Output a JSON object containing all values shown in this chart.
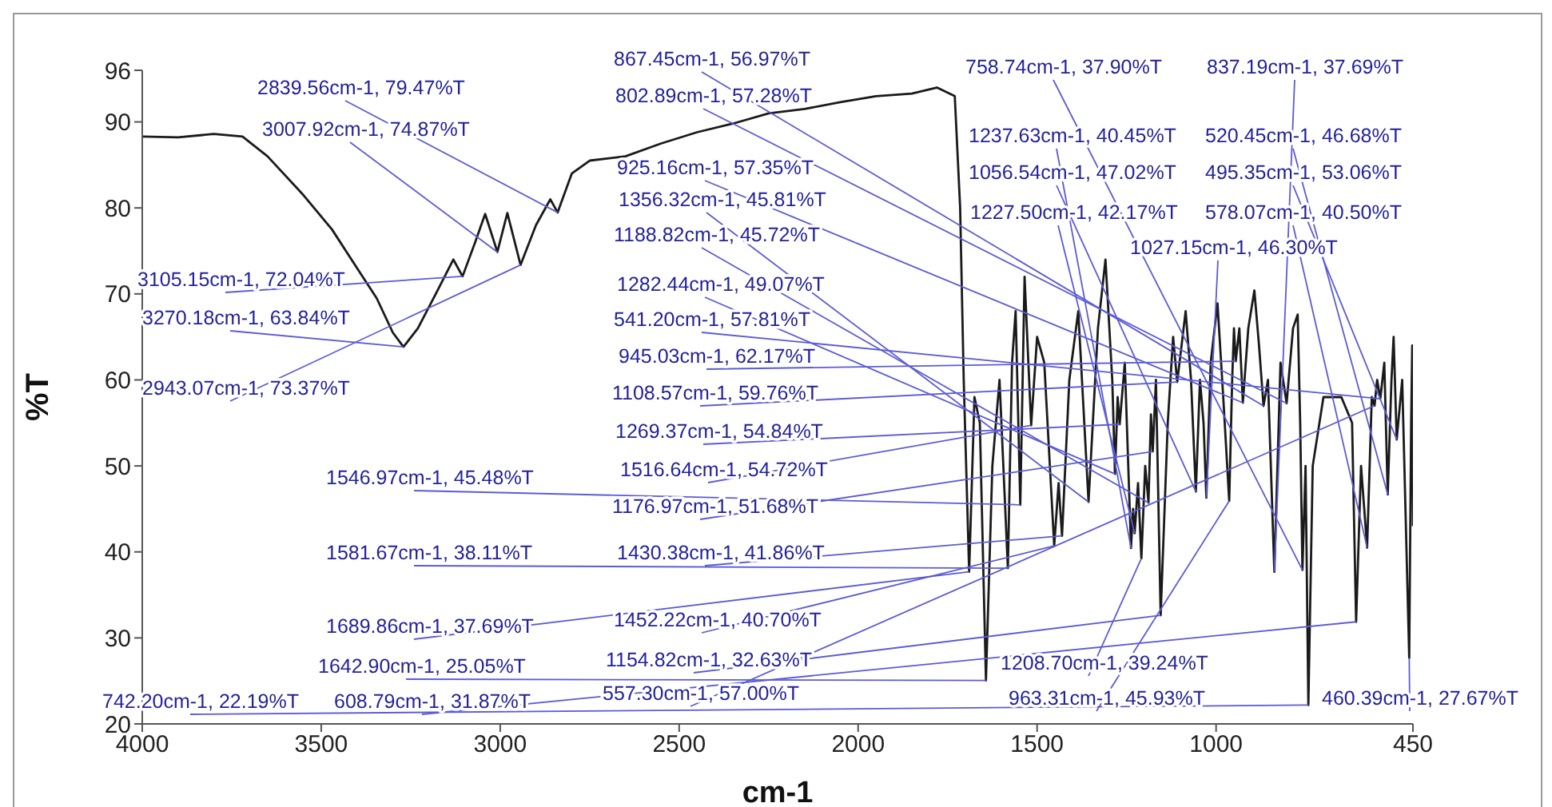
{
  "chart_data": {
    "type": "line",
    "xlabel": "cm-1",
    "ylabel": "%T",
    "xlim": [
      4000,
      450
    ],
    "ylim": [
      20,
      96
    ],
    "xticks": [
      4000,
      3500,
      3000,
      2500,
      2000,
      1500,
      1000,
      450
    ],
    "yticks": [
      20,
      30,
      40,
      50,
      60,
      70,
      80,
      90,
      96
    ],
    "marker": "none",
    "line_style": "solid",
    "x": [
      4000,
      3900,
      3800,
      3720,
      3650,
      3550,
      3470,
      3400,
      3345,
      3300,
      3270.18,
      3230,
      3180,
      3131,
      3105.15,
      3070,
      3042,
      3007.92,
      2980,
      2943.07,
      2900,
      2860,
      2839.56,
      2800,
      2750,
      2650,
      2550,
      2450,
      2350,
      2250,
      2150,
      2050,
      1950,
      1850,
      1780,
      1730,
      1715,
      1705,
      1689.86,
      1675,
      1660,
      1642.9,
      1625,
      1605,
      1581.67,
      1570,
      1560,
      1546.97,
      1535,
      1516.64,
      1500,
      1480,
      1452.22,
      1440,
      1430.38,
      1410,
      1385,
      1356.32,
      1330,
      1309,
      1290,
      1282.44,
      1275,
      1269.37,
      1255,
      1237.63,
      1232,
      1227.5,
      1218,
      1208.7,
      1198,
      1188.82,
      1182,
      1176.97,
      1168,
      1154.82,
      1135,
      1120,
      1108.57,
      1085,
      1070,
      1056.54,
      1045,
      1035,
      1027.15,
      1015,
      996,
      980,
      963.31,
      955,
      950,
      945.03,
      935,
      925.16,
      910,
      893,
      880,
      867.45,
      855,
      837.19,
      820,
      802.89,
      785,
      772,
      765,
      758.74,
      750,
      742.2,
      730,
      700,
      650,
      620,
      608.79,
      595,
      578.07,
      565,
      557.3,
      550,
      541.2,
      530,
      520.45,
      510,
      504,
      495.35,
      480,
      460.39,
      455,
      452,
      450
    ],
    "series": [
      {
        "color": "#1a1a1a",
        "values": [
          88.3,
          88.2,
          88.6,
          88.3,
          86,
          81.5,
          77.5,
          73,
          69.5,
          65.5,
          63.84,
          66,
          70,
          74,
          72.04,
          76,
          79.3,
          74.87,
          79.4,
          73.37,
          78,
          81,
          79.47,
          84,
          85.5,
          86,
          87.5,
          88.8,
          89.8,
          91,
          91.5,
          92.3,
          93,
          93.3,
          94,
          93,
          80,
          60,
          37.69,
          58,
          55,
          25.05,
          50,
          60,
          38.11,
          62,
          68,
          45.48,
          72,
          54.72,
          65,
          62,
          40.7,
          48,
          41.86,
          60,
          68,
          45.81,
          66,
          74,
          60,
          49.07,
          58,
          54.84,
          62,
          40.45,
          45,
          42.17,
          48,
          39.24,
          50,
          45.72,
          56,
          51.68,
          60,
          32.63,
          55,
          65,
          59.76,
          68,
          60,
          47.02,
          60,
          55,
          46.3,
          62,
          68.9,
          58,
          45.93,
          60,
          66,
          62.17,
          66,
          57.35,
          66,
          70.4,
          64,
          56.97,
          60,
          37.69,
          62,
          57.28,
          66,
          67.6,
          55,
          37.9,
          50,
          22.19,
          50,
          58,
          58,
          55,
          31.87,
          50,
          40.5,
          58,
          57,
          60,
          57.81,
          62,
          46.68,
          60,
          65,
          53.06,
          60,
          27.67,
          55,
          64,
          43
        ]
      }
    ],
    "annotations": [
      {
        "text": "2839.56cm-1, 79.47%T",
        "x": 2839.56,
        "y": 79.47
      },
      {
        "text": "3007.92cm-1, 74.87%T",
        "x": 3007.92,
        "y": 74.87
      },
      {
        "text": "3105.15cm-1, 72.04%T",
        "x": 3105.15,
        "y": 72.04
      },
      {
        "text": "3270.18cm-1, 63.84%T",
        "x": 3270.18,
        "y": 63.84
      },
      {
        "text": "2943.07cm-1, 73.37%T",
        "x": 2943.07,
        "y": 73.37
      },
      {
        "text": "1546.97cm-1, 45.48%T",
        "x": 1546.97,
        "y": 45.48
      },
      {
        "text": "1581.67cm-1, 38.11%T",
        "x": 1581.67,
        "y": 38.11
      },
      {
        "text": "1689.86cm-1, 37.69%T",
        "x": 1689.86,
        "y": 37.69
      },
      {
        "text": "1642.90cm-1, 25.05%T",
        "x": 1642.9,
        "y": 25.05
      },
      {
        "text": "742.20cm-1, 22.19%T",
        "x": 742.2,
        "y": 22.19
      },
      {
        "text": "608.79cm-1, 31.87%T",
        "x": 608.79,
        "y": 31.87
      },
      {
        "text": "867.45cm-1, 56.97%T",
        "x": 867.45,
        "y": 56.97
      },
      {
        "text": "802.89cm-1, 57.28%T",
        "x": 802.89,
        "y": 57.28
      },
      {
        "text": "925.16cm-1, 57.35%T",
        "x": 925.16,
        "y": 57.35
      },
      {
        "text": "1356.32cm-1, 45.81%T",
        "x": 1356.32,
        "y": 45.81
      },
      {
        "text": "1188.82cm-1, 45.72%T",
        "x": 1188.82,
        "y": 45.72
      },
      {
        "text": "1282.44cm-1, 49.07%T",
        "x": 1282.44,
        "y": 49.07
      },
      {
        "text": "541.20cm-1, 57.81%T",
        "x": 541.2,
        "y": 57.81
      },
      {
        "text": "945.03cm-1, 62.17%T",
        "x": 945.03,
        "y": 62.17
      },
      {
        "text": "1108.57cm-1, 59.76%T",
        "x": 1108.57,
        "y": 59.76
      },
      {
        "text": "1269.37cm-1, 54.84%T",
        "x": 1269.37,
        "y": 54.84
      },
      {
        "text": "1516.64cm-1, 54.72%T",
        "x": 1516.64,
        "y": 54.72
      },
      {
        "text": "1176.97cm-1, 51.68%T",
        "x": 1176.97,
        "y": 51.68
      },
      {
        "text": "1430.38cm-1, 41.86%T",
        "x": 1430.38,
        "y": 41.86
      },
      {
        "text": "1452.22cm-1, 40.70%T",
        "x": 1452.22,
        "y": 40.7
      },
      {
        "text": "1154.82cm-1, 32.63%T",
        "x": 1154.82,
        "y": 32.63
      },
      {
        "text": "557.30cm-1, 57.00%T",
        "x": 557.3,
        "y": 57.0
      },
      {
        "text": "758.74cm-1, 37.90%T",
        "x": 758.74,
        "y": 37.9
      },
      {
        "text": "837.19cm-1, 37.69%T",
        "x": 837.19,
        "y": 37.69
      },
      {
        "text": "1237.63cm-1, 40.45%T",
        "x": 1237.63,
        "y": 40.45
      },
      {
        "text": "520.45cm-1, 46.68%T",
        "x": 520.45,
        "y": 46.68
      },
      {
        "text": "1056.54cm-1, 47.02%T",
        "x": 1056.54,
        "y": 47.02
      },
      {
        "text": "495.35cm-1, 53.06%T",
        "x": 495.35,
        "y": 53.06
      },
      {
        "text": "1227.50cm-1, 42.17%T",
        "x": 1227.5,
        "y": 42.17
      },
      {
        "text": "578.07cm-1, 40.50%T",
        "x": 578.07,
        "y": 40.5
      },
      {
        "text": "1027.15cm-1, 46.30%T",
        "x": 1027.15,
        "y": 46.3
      },
      {
        "text": "1208.70cm-1, 39.24%T",
        "x": 1208.7,
        "y": 39.24
      },
      {
        "text": "963.31cm-1, 45.93%T",
        "x": 963.31,
        "y": 45.93
      },
      {
        "text": "460.39cm-1, 27.67%T",
        "x": 460.39,
        "y": 27.67
      }
    ]
  }
}
